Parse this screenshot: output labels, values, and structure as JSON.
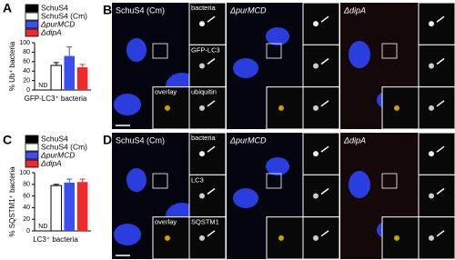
{
  "chart_data": [
    {
      "type": "bar",
      "panel": "A",
      "y_label": "% Ub⁺ bacteria",
      "x_label": "GFP-LC3⁺ bacteria",
      "categories": [
        null
      ],
      "annotation": "ND",
      "series": [
        {
          "name": "SchuS4",
          "color": "#000000",
          "values": [
            null
          ]
        },
        {
          "name": "SchuS4 (Cm)",
          "color": "#ffffff",
          "values": [
            52
          ],
          "errors": [
            6
          ]
        },
        {
          "name": "ΔpurMCD",
          "color": "#3b4ff0",
          "values": [
            72
          ],
          "errors": [
            19
          ]
        },
        {
          "name": "ΔdipA",
          "color": "#ee2a2a",
          "values": [
            48
          ],
          "errors": [
            6
          ]
        }
      ],
      "ylim": [
        0,
        100
      ],
      "yticks": [
        0,
        20,
        40,
        60,
        80,
        100
      ]
    },
    {
      "type": "bar",
      "panel": "C",
      "y_label": "% SQSTM1⁺ bacteria",
      "x_label": "LC3⁺ bacteria",
      "categories": [
        null
      ],
      "annotation": "ND",
      "series": [
        {
          "name": "SchuS4",
          "color": "#000000",
          "values": [
            null
          ]
        },
        {
          "name": "SchuS4 (Cm)",
          "color": "#ffffff",
          "values": [
            78
          ],
          "errors": [
            2
          ]
        },
        {
          "name": "ΔpurMCD",
          "color": "#3b4ff0",
          "values": [
            83
          ],
          "errors": [
            6
          ]
        },
        {
          "name": "ΔdipA",
          "color": "#ee2a2a",
          "values": [
            84
          ],
          "errors": [
            5
          ]
        }
      ],
      "ylim": [
        0,
        100
      ],
      "yticks": [
        0,
        20,
        40,
        60,
        80,
        100
      ]
    }
  ],
  "images": [
    {
      "panel": "B",
      "titles": [
        "SchuS4 (Cm)",
        "ΔpurMCD",
        "ΔdipA"
      ],
      "insets": [
        "bacteria",
        "GFP-LC3",
        "overlay",
        "ubiquitin"
      ]
    },
    {
      "panel": "D",
      "titles": [
        "SchuS4 (Cm)",
        "ΔpurMCD",
        "ΔdipA"
      ],
      "insets": [
        "bacteria",
        "LC3",
        "overlay",
        "SQSTM1"
      ]
    }
  ]
}
